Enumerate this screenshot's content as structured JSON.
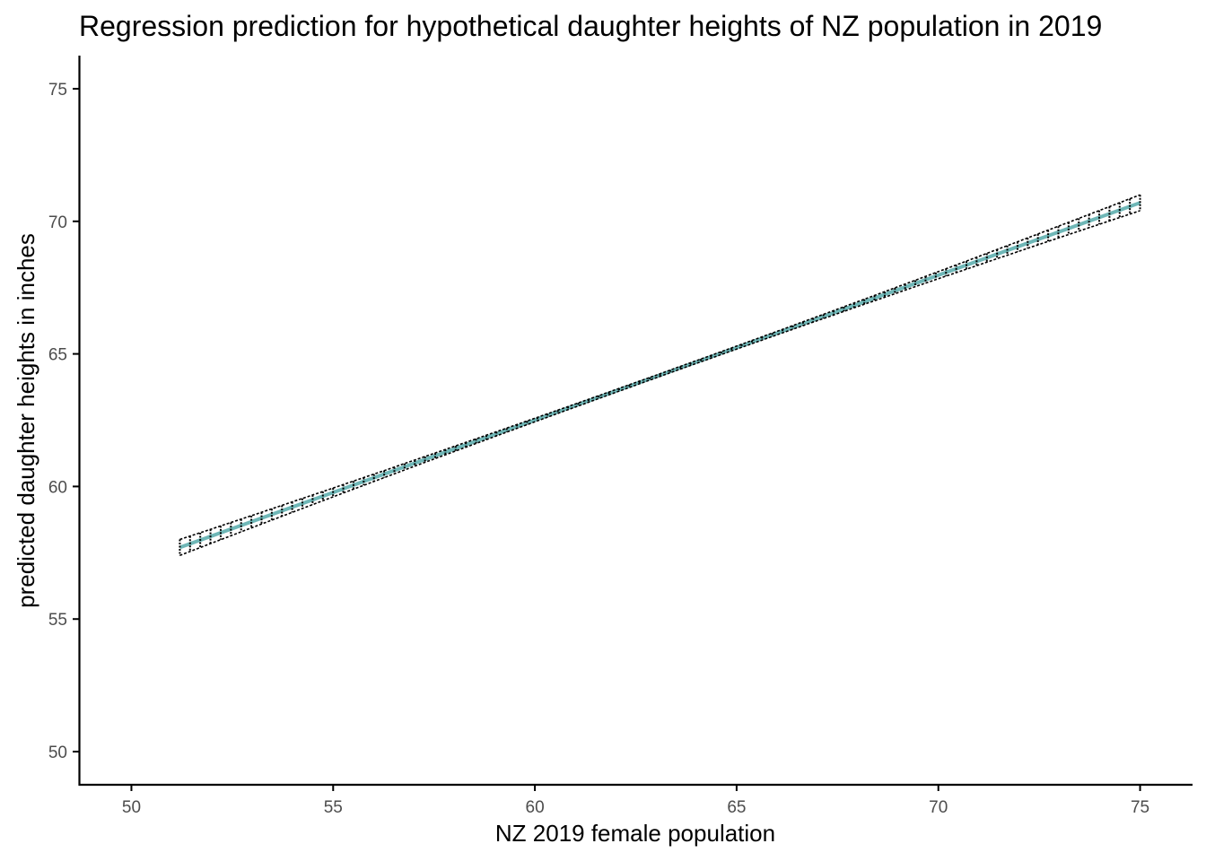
{
  "chart_data": {
    "type": "line",
    "title": "Regression prediction for hypothetical daughter heights of NZ population in 2019",
    "xlabel": "NZ 2019 female population",
    "ylabel": "predicted daughter heights in inches",
    "xlim": [
      48.7,
      76.3
    ],
    "ylim": [
      48.75,
      76.25
    ],
    "x_ticks": [
      50,
      55,
      60,
      65,
      70,
      75
    ],
    "y_ticks": [
      50,
      55,
      60,
      65,
      70,
      75
    ],
    "grid": false,
    "legend": "none",
    "regression": {
      "x_start": 51.2,
      "x_end": 75.0,
      "y_start": 57.7,
      "y_end": 70.7
    },
    "interval": {
      "half_width_at_ends": 0.3,
      "half_width_at_center": 0.05,
      "center_x": 63.1
    },
    "interval_bar_count": 95,
    "colors": {
      "line": "#6fb7b7",
      "interval": "#000000",
      "axis": "#000000"
    }
  }
}
